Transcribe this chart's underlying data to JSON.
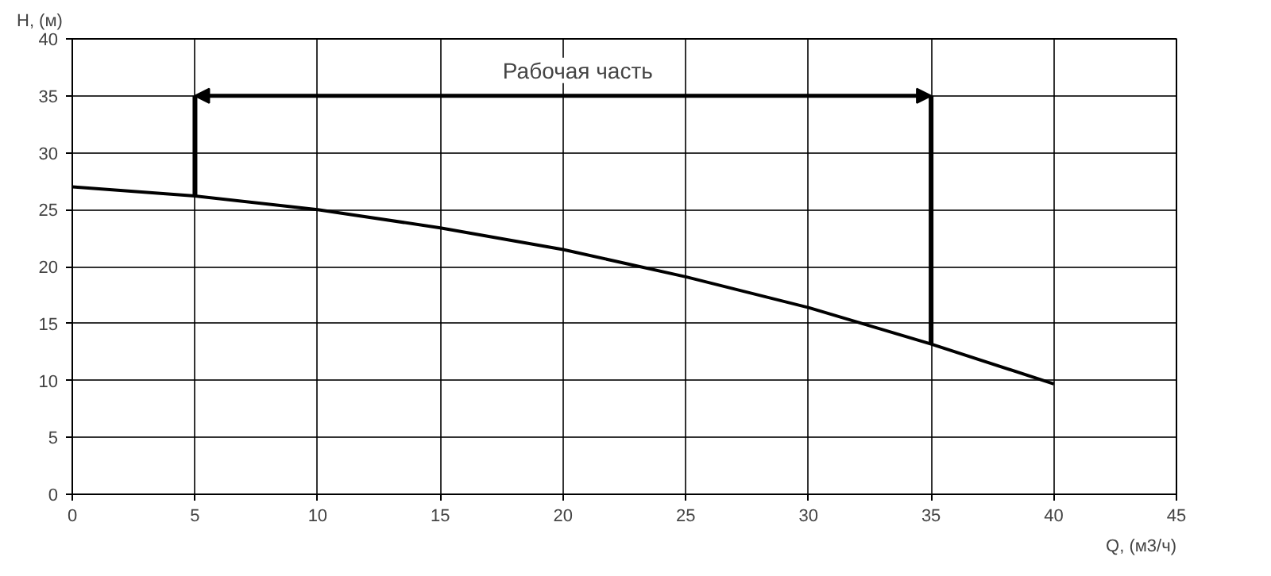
{
  "chart_data": {
    "type": "line",
    "xlabel": "Q, (м3/ч)",
    "ylabel": "H, (м)",
    "x": [
      0,
      5,
      10,
      15,
      20,
      25,
      30,
      35,
      40
    ],
    "series": [
      {
        "color": "#000000",
        "values": [
          27,
          26.2,
          25,
          23.4,
          21.5,
          19.1,
          16.4,
          13.2,
          9.7
        ]
      }
    ],
    "xlim": [
      0,
      45
    ],
    "ylim": [
      0,
      40
    ],
    "xticks": [
      0,
      5,
      10,
      15,
      20,
      25,
      30,
      35,
      40,
      45
    ],
    "yticks": [
      0,
      5,
      10,
      15,
      20,
      25,
      30,
      35,
      40
    ],
    "grid": true,
    "marker": "none",
    "line_style": "solid",
    "ref_lines": [
      {
        "axis": "x",
        "value": 5,
        "color": "#000000"
      },
      {
        "axis": "x",
        "value": 35,
        "color": "#000000"
      }
    ],
    "annotations": [
      {
        "text": "Рабочая часть",
        "x": 35,
        "y": 35
      }
    ]
  }
}
